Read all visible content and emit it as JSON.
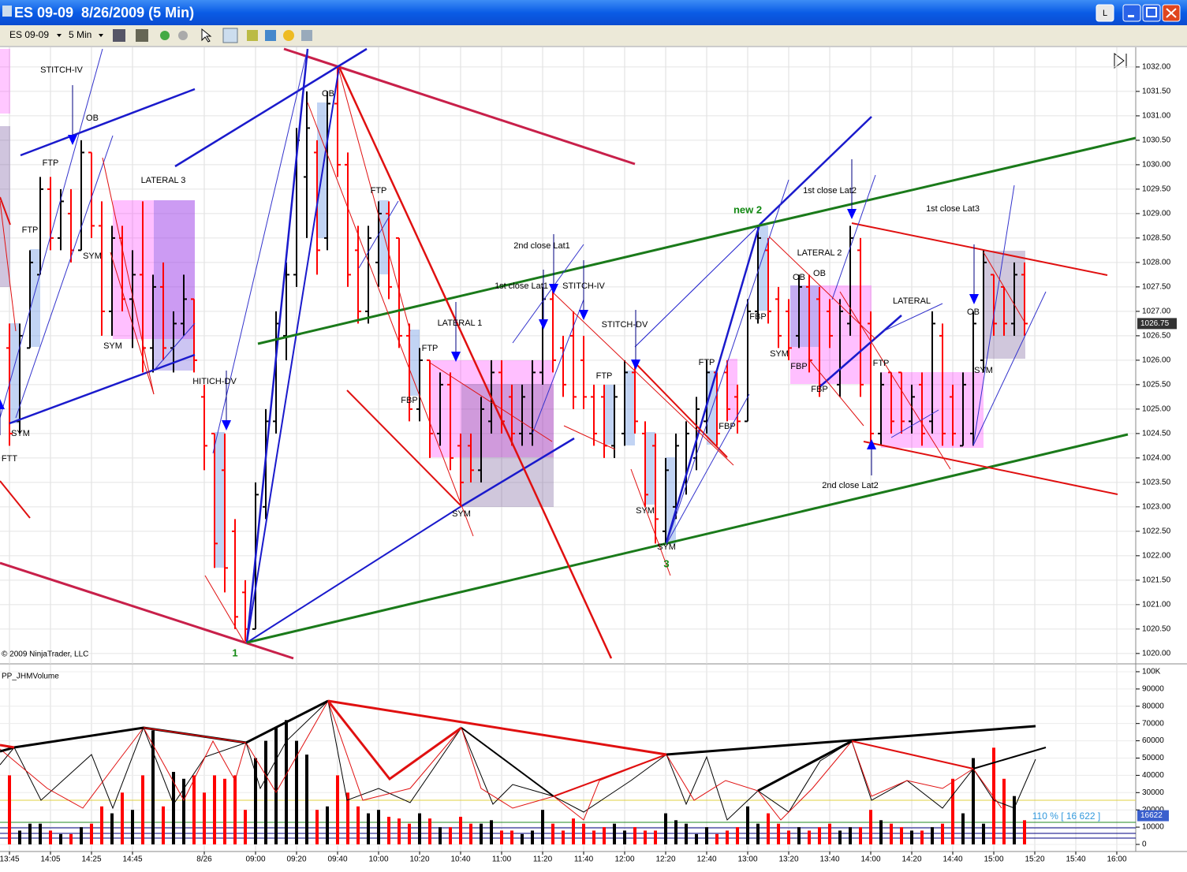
{
  "window": {
    "title": "ES 09-09  8/26/2009 (5 Min)",
    "instrument": "ES 09-09",
    "interval": "5 Min",
    "button": "L"
  },
  "chart_data": [
    {
      "type": "ohlc",
      "up_color": "#000000",
      "down_color": "#ff0000",
      "grid": true,
      "copyright": "© 2009 NinjaTrader, LLC",
      "last_price": 1026.75,
      "ylim": [
        1019.82,
        1032.37
      ],
      "yticks": [
        {
          "value": 1020,
          "label": "1020.00"
        },
        {
          "value": 1020.5,
          "label": "1020.50"
        },
        {
          "value": 1021,
          "label": "1021.00"
        },
        {
          "value": 1021.5,
          "label": "1021.50"
        },
        {
          "value": 1022,
          "label": "1022.00"
        },
        {
          "value": 1022.5,
          "label": "1022.50"
        },
        {
          "value": 1023,
          "label": "1023.00"
        },
        {
          "value": 1023.5,
          "label": "1023.50"
        },
        {
          "value": 1024,
          "label": "1024.00"
        },
        {
          "value": 1024.5,
          "label": "1024.50"
        },
        {
          "value": 1025,
          "label": "1025.00"
        },
        {
          "value": 1025.5,
          "label": "1025.50"
        },
        {
          "value": 1026,
          "label": "1026.00"
        },
        {
          "value": 1026.5,
          "label": "1026.50"
        },
        {
          "value": 1027,
          "label": "1027.00"
        },
        {
          "value": 1027.5,
          "label": "1027.50"
        },
        {
          "value": 1028,
          "label": "1028.00"
        },
        {
          "value": 1028.5,
          "label": "1028.50"
        },
        {
          "value": 1029,
          "label": "1029.00"
        },
        {
          "value": 1029.5,
          "label": "1029.50"
        },
        {
          "value": 1030,
          "label": "1030.00"
        },
        {
          "value": 1030.5,
          "label": "1030.50"
        },
        {
          "value": 1031,
          "label": "1031.00"
        },
        {
          "value": 1031.5,
          "label": "1031.50"
        },
        {
          "value": 1032,
          "label": "1032.00"
        }
      ],
      "open": [
        1026.25,
        1024.75,
        1026.25,
        1027.75,
        1029.5,
        1028.5,
        1029,
        1028.25,
        1030.25,
        1028.75,
        1027,
        1028.5,
        1027.25,
        1027.75,
        1026.25,
        1027.5,
        1026.25,
        1026.75,
        1027.25,
        1025.25,
        1024.5,
        1023.75,
        1022.5,
        1021.25,
        1020.5,
        1023,
        1024.75,
        1026.5,
        1027.75,
        1029.75,
        1030.25,
        1028.5,
        1031.25,
        1030,
        1028.25,
        1027,
        1028,
        1029,
        1028.5,
        1026.5,
        1025,
        1026,
        1024.5,
        1025.5,
        1024.25,
        1024.25,
        1023.75,
        1024.75,
        1025.75,
        1025.25,
        1024.5,
        1024.5,
        1025.75,
        1027.25,
        1026.25,
        1026.5,
        1026,
        1025.25,
        1025.25,
        1024.25,
        1024.5,
        1025.75,
        1024.5,
        1024.25,
        1022.5,
        1023,
        1023.5,
        1024,
        1024.75,
        1025.75,
        1025.75,
        1025.25,
        1024.75,
        1027,
        1028.25,
        1027.25,
        1027,
        1026.5,
        1027.5,
        1027.25,
        1027,
        1025.5,
        1026.75,
        1028.25,
        1026.75,
        1024.5,
        1025.75,
        1025.75,
        1024.75,
        1025.5,
        1024.75,
        1026.5,
        1025.25,
        1024.25,
        1024.5,
        1026,
        1027.75,
        1027.5,
        1026.75,
        1027.75,
        null,
        null,
        null,
        null,
        null,
        null,
        null,
        null,
        null
      ],
      "high": [
        1026.75,
        1026.75,
        1028.25,
        1029.75,
        1029.75,
        1029.5,
        1029.5,
        1030.5,
        1030.25,
        1029.25,
        1028.75,
        1028.75,
        1028.25,
        1029.25,
        1027.75,
        1028,
        1027,
        1027.75,
        1027.25,
        1025.5,
        1024.5,
        1024.5,
        1022.75,
        1021.5,
        1023.5,
        1025,
        1027,
        1028,
        1030.75,
        1031.5,
        1030.5,
        1031.5,
        1032,
        1030.25,
        1028.75,
        1028.75,
        1029.25,
        1029.25,
        1028.5,
        1026.75,
        1026.25,
        1026,
        1025.75,
        1025.75,
        1024.5,
        1024.5,
        1025.25,
        1026,
        1026,
        1025.5,
        1025.5,
        1026,
        1027.5,
        1027.5,
        1026.5,
        1027,
        1026.5,
        1025.5,
        1025.5,
        1025.5,
        1026,
        1026,
        1024.75,
        1024.5,
        1024,
        1024.5,
        1024.75,
        1025.25,
        1026,
        1025.75,
        1026,
        1025.5,
        1027.25,
        1028.75,
        1028.5,
        1027.5,
        1027.25,
        1027.75,
        1027.75,
        1027.5,
        1027.25,
        1027.25,
        1028.75,
        1028.5,
        1027,
        1025.75,
        1025.75,
        1025.75,
        1025.5,
        1025.75,
        1027,
        1026.75,
        1025.5,
        1025.75,
        1027,
        1028.25,
        1027.75,
        1027.5,
        1028,
        1028,
        null,
        null,
        null,
        null,
        null,
        null,
        null,
        null,
        null
      ],
      "low": [
        1024.25,
        1024.5,
        1026.25,
        1027.75,
        1028.25,
        1028.25,
        1028,
        1028.25,
        1028.5,
        1026.5,
        1026.5,
        1027,
        1026.25,
        1025.75,
        1025.75,
        1026,
        1025.75,
        1026.5,
        1025.75,
        1023.75,
        1021.75,
        1021.25,
        1020.5,
        1020.25,
        1020.5,
        1022.75,
        1024.5,
        1026,
        1027.5,
        1028.5,
        1027.75,
        1028.25,
        1029.75,
        1027.5,
        1026.75,
        1026.75,
        1027.5,
        1027.25,
        1026.25,
        1024.75,
        1024.75,
        1024,
        1024.25,
        1023.75,
        1023,
        1023.5,
        1023.5,
        1024.5,
        1024.5,
        1024.25,
        1024.25,
        1024.25,
        1025.5,
        1025.75,
        1025.25,
        1025,
        1025,
        1024.25,
        1024,
        1024,
        1024.25,
        1024.5,
        1023,
        1022.25,
        1022.25,
        1022.75,
        1023.25,
        1023.75,
        1024.5,
        1024.25,
        1024.75,
        1024.5,
        1024.75,
        1026.75,
        1026.75,
        1026.25,
        1026,
        1026.25,
        1025.75,
        1025.25,
        1026.25,
        1025.25,
        1026.5,
        1025.25,
        1024.25,
        1024.25,
        1024.5,
        1024.5,
        1024.5,
        1024.25,
        1024.5,
        1024.25,
        1024.25,
        1024.25,
        1024.25,
        1025.75,
        1026.5,
        1026.5,
        1026.5,
        1026.5,
        null,
        null,
        null,
        null,
        null,
        null,
        null,
        null,
        null
      ],
      "close": [
        1024.5,
        1026.5,
        1028,
        1029.5,
        1028.5,
        1029.25,
        1028.25,
        1030.25,
        1028.75,
        1027,
        1028.5,
        1027.25,
        1027.75,
        1026.25,
        1027.5,
        1026.25,
        1026.75,
        1027.25,
        1026,
        1024.25,
        1022.25,
        1021.75,
        1020.75,
        1020.5,
        1023.25,
        1024.75,
        1026.75,
        1027.75,
        1030.5,
        1030.75,
        1028.25,
        1031.25,
        1030,
        1027.75,
        1027,
        1028.5,
        1029,
        1027.5,
        1026.5,
        1025,
        1026,
        1024.5,
        1025.5,
        1024,
        1023.5,
        1023.75,
        1025,
        1025.75,
        1024.75,
        1024.5,
        1025.25,
        1025.75,
        1027.25,
        1026,
        1025.5,
        1025.25,
        1025.25,
        1024.5,
        1024.25,
        1025.25,
        1025.75,
        1024.75,
        1023.25,
        1022.75,
        1023.75,
        1024.25,
        1024.5,
        1025,
        1025.75,
        1024.5,
        1025,
        1024.75,
        1027,
        1028.5,
        1027,
        1026.5,
        1026.25,
        1027.5,
        1026,
        1025.5,
        1026.5,
        1027,
        1028.5,
        1025.5,
        1024.5,
        1025.5,
        1024.75,
        1024.75,
        1025.25,
        1024.5,
        1026.75,
        1024.5,
        1024.5,
        1025.5,
        1026.75,
        1028,
        1026.75,
        1026.75,
        1027.75,
        1026.75,
        null,
        null,
        null,
        null,
        null,
        null,
        null,
        null,
        null
      ],
      "annotations": [
        "STITCH-IV",
        "OB",
        "FTP",
        "LATERAL 3",
        "FTP",
        "SYM",
        "SYM",
        "HITICH-DV",
        "SYM",
        "FTT",
        "OB",
        "FTP",
        "LATERAL 1",
        "FTP",
        "FBP",
        "2nd close Lat1",
        "1st close Lat1",
        "STITCH-IV",
        "STITCH-DV",
        "FTP",
        "SYM",
        "SYM",
        "SYM",
        "3",
        "FTP",
        "FBP",
        "new 2",
        "FBP",
        "1st close Lat2",
        "LATERAL 2",
        "OB",
        "OB",
        "SYM",
        "FBP",
        "FBP",
        "FTP",
        "LATERAL",
        "1st close Lat3",
        "OB",
        "SYM",
        "2nd close Lat2",
        "1"
      ]
    },
    {
      "type": "bar",
      "title": "PP_JHMVolume",
      "grid": true,
      "level_label": "110 % [ 16 622 ]",
      "level_value": 16622,
      "ylim": [
        0,
        104100
      ],
      "yticks": [
        0,
        10000,
        20000,
        30000,
        40000,
        50000,
        60000,
        70000,
        80000,
        90000,
        {
          "value": 100000,
          "label": "100K"
        }
      ],
      "categories": [
        "13:45",
        null,
        null,
        null,
        "14:05",
        null,
        null,
        null,
        "14:25",
        null,
        null,
        null,
        "14:45",
        null,
        null,
        null,
        null,
        null,
        null,
        "8/26",
        null,
        null,
        null,
        null,
        "09:00",
        null,
        null,
        null,
        "09:20",
        null,
        null,
        null,
        "09:40",
        null,
        null,
        null,
        "10:00",
        null,
        null,
        null,
        "10:20",
        null,
        null,
        null,
        "10:40",
        null,
        null,
        null,
        "11:00",
        null,
        null,
        null,
        "11:20",
        null,
        null,
        null,
        "11:40",
        null,
        null,
        null,
        "12:00",
        null,
        null,
        null,
        "12:20",
        null,
        null,
        null,
        "12:40",
        null,
        null,
        null,
        "13:00",
        null,
        null,
        null,
        "13:20",
        null,
        null,
        null,
        "13:40",
        null,
        null,
        null,
        "14:00",
        null,
        null,
        null,
        "14:20",
        null,
        null,
        null,
        "14:40",
        null,
        null,
        null,
        "15:00",
        null,
        null,
        null,
        "15:20",
        null,
        null,
        null,
        "15:40",
        null,
        null,
        null,
        "16:00"
      ],
      "values": [
        40000,
        8000,
        12000,
        12000,
        8000,
        6000,
        6000,
        10000,
        12000,
        22000,
        18000,
        30000,
        20000,
        40000,
        66000,
        22000,
        42000,
        38000,
        40000,
        30000,
        40000,
        38000,
        40000,
        20000,
        50000,
        60000,
        68000,
        72000,
        60000,
        52000,
        20000,
        22000,
        40000,
        30000,
        22000,
        18000,
        20000,
        16000,
        15000,
        12000,
        18000,
        15000,
        10000,
        10000,
        16000,
        12000,
        12000,
        14000,
        8000,
        8000,
        6000,
        8000,
        20000,
        12000,
        8000,
        15000,
        12000,
        8000,
        10000,
        12000,
        8000,
        10000,
        8000,
        8000,
        18000,
        14000,
        12000,
        6000,
        10000,
        6000,
        8000,
        10000,
        22000,
        12000,
        18000,
        12000,
        8000,
        10000,
        8000,
        10000,
        12000,
        8000,
        10000,
        10000,
        20000,
        14000,
        12000,
        10000,
        8000,
        8000,
        10000,
        12000,
        38000,
        18000,
        50000,
        12000,
        56000,
        38000,
        28000,
        14000,
        null,
        null,
        null,
        null,
        null,
        null,
        null,
        null,
        null
      ]
    }
  ]
}
